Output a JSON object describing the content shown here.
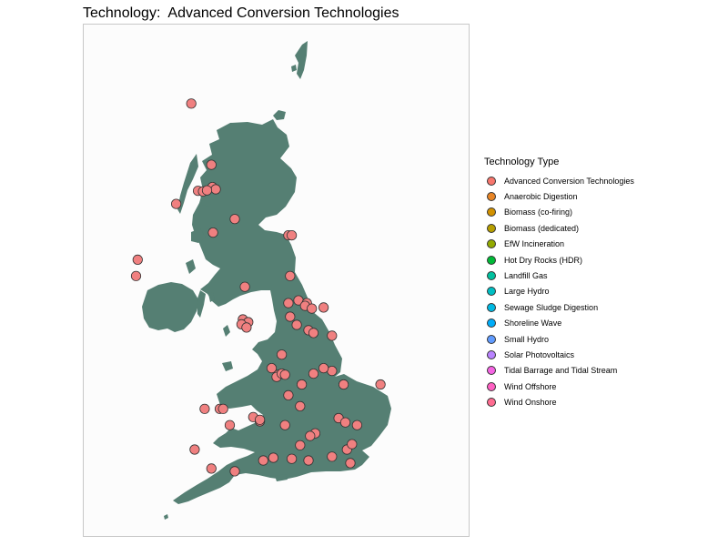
{
  "title": "Technology:  Advanced Conversion Technologies",
  "colors": {
    "land": "#557f73",
    "background": "#fcfcfc",
    "panel_border": "#c8c8c8",
    "point_fill": "#f08080",
    "point_stroke": "#333333"
  },
  "legend": {
    "title": "Technology Type",
    "items": [
      {
        "label": "Advanced Conversion Technologies",
        "color": "#f8766d"
      },
      {
        "label": "Anaerobic Digestion",
        "color": "#e88526"
      },
      {
        "label": "Biomass (co-firing)",
        "color": "#d39200"
      },
      {
        "label": "Biomass (dedicated)",
        "color": "#b79f00"
      },
      {
        "label": "EfW Incineration",
        "color": "#93aa00"
      },
      {
        "label": "Hot Dry Rocks (HDR)",
        "color": "#00ba38"
      },
      {
        "label": "Landfill Gas",
        "color": "#00c19f"
      },
      {
        "label": "Large Hydro",
        "color": "#00bfc4"
      },
      {
        "label": "Sewage Sludge Digestion",
        "color": "#00b9e3"
      },
      {
        "label": "Shoreline Wave",
        "color": "#00adfa"
      },
      {
        "label": "Small Hydro",
        "color": "#619cff"
      },
      {
        "label": "Solar Photovoltaics",
        "color": "#b983ff"
      },
      {
        "label": "Tidal Barrage and Tidal Stream",
        "color": "#f564e3"
      },
      {
        "label": "Wind Offshore",
        "color": "#ff61c3"
      },
      {
        "label": "Wind Onshore",
        "color": "#ff6c91"
      }
    ]
  },
  "map_points": {
    "technology": "Advanced Conversion Technologies",
    "points": [
      [
        -4.5,
        57.48
      ],
      [
        -3.9,
        56.35
      ],
      [
        -4.3,
        55.87
      ],
      [
        -4.15,
        55.86
      ],
      [
        -3.87,
        55.94
      ],
      [
        -3.77,
        55.9
      ],
      [
        -4.03,
        55.88
      ],
      [
        -4.95,
        55.63
      ],
      [
        -3.2,
        55.35
      ],
      [
        -3.85,
        55.1
      ],
      [
        -1.6,
        55.05
      ],
      [
        -1.5,
        55.05
      ],
      [
        -6.1,
        54.6
      ],
      [
        -6.15,
        54.3
      ],
      [
        -2.9,
        54.1
      ],
      [
        -1.55,
        54.3
      ],
      [
        -1.3,
        53.85
      ],
      [
        -1.6,
        53.8
      ],
      [
        -1.05,
        53.8
      ],
      [
        -1.1,
        53.75
      ],
      [
        -0.9,
        53.7
      ],
      [
        -0.55,
        53.72
      ],
      [
        -2.96,
        53.5
      ],
      [
        -2.8,
        53.45
      ],
      [
        -3.0,
        53.41
      ],
      [
        -2.85,
        53.35
      ],
      [
        -1.55,
        53.55
      ],
      [
        -1.35,
        53.4
      ],
      [
        -1.0,
        53.3
      ],
      [
        -0.85,
        53.25
      ],
      [
        -0.3,
        53.2
      ],
      [
        -1.8,
        52.85
      ],
      [
        -2.1,
        52.6
      ],
      [
        -1.9,
        52.48
      ],
      [
        -1.95,
        52.44
      ],
      [
        -1.8,
        52.5
      ],
      [
        -1.7,
        52.48
      ],
      [
        -0.85,
        52.5
      ],
      [
        -0.3,
        52.55
      ],
      [
        -1.2,
        52.3
      ],
      [
        -0.55,
        52.6
      ],
      [
        -1.6,
        52.1
      ],
      [
        -1.25,
        51.9
      ],
      [
        0.05,
        52.3
      ],
      [
        1.15,
        52.3
      ],
      [
        -4.1,
        51.85
      ],
      [
        -3.65,
        51.85
      ],
      [
        -3.55,
        51.85
      ],
      [
        -3.35,
        51.55
      ],
      [
        -2.65,
        51.7
      ],
      [
        -2.45,
        51.62
      ],
      [
        -2.45,
        51.65
      ],
      [
        -1.7,
        51.55
      ],
      [
        -0.8,
        51.4
      ],
      [
        -0.1,
        51.68
      ],
      [
        0.1,
        51.6
      ],
      [
        0.45,
        51.55
      ],
      [
        -1.25,
        51.18
      ],
      [
        -0.95,
        51.35
      ],
      [
        -3.9,
        50.75
      ],
      [
        -2.05,
        50.95
      ],
      [
        -1.5,
        50.93
      ],
      [
        -1.0,
        50.9
      ],
      [
        -0.3,
        50.97
      ],
      [
        0.25,
        50.85
      ],
      [
        0.15,
        51.1
      ],
      [
        -2.35,
        50.9
      ],
      [
        -3.2,
        50.7
      ],
      [
        -4.4,
        51.1
      ],
      [
        0.3,
        51.2
      ]
    ]
  }
}
